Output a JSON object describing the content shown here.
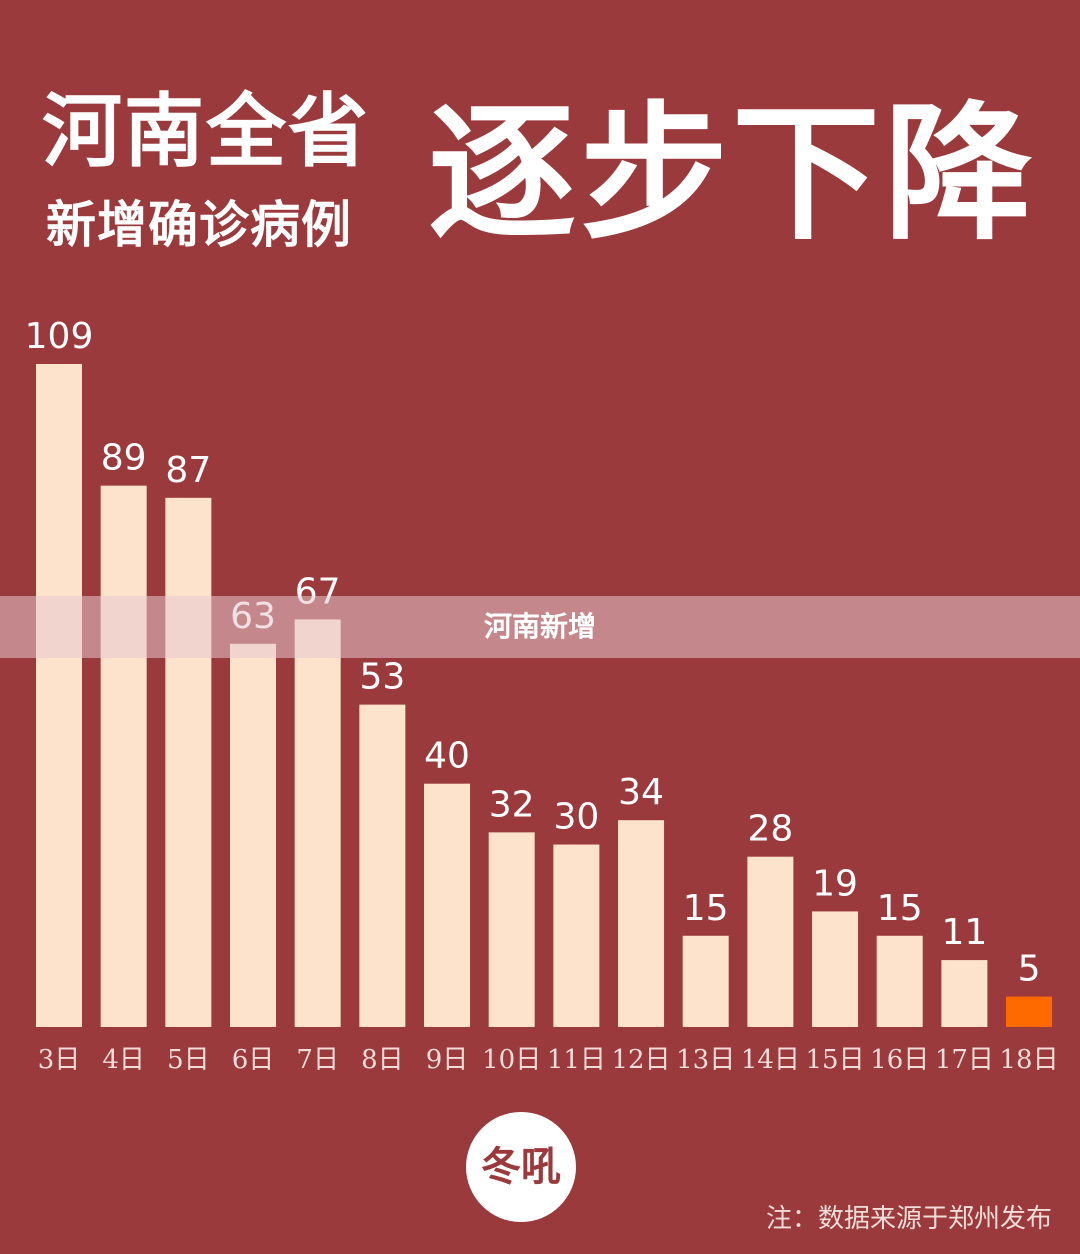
{
  "header": {
    "line1": "河南全省",
    "line2": "新增确诊病例",
    "big": "逐步下降"
  },
  "overlay": {
    "label": "河南新增"
  },
  "logo": {
    "text": "冬吼"
  },
  "footer": {
    "note": "注：数据来源于郑州发布"
  },
  "colors": {
    "background": "#9b3a3c",
    "bar": "#fde3cc",
    "highlight_bar": "#ff6a00",
    "text": "#ffffff"
  },
  "chart_data": {
    "type": "bar",
    "title": "",
    "xlabel": "",
    "ylabel": "",
    "categories": [
      "3日",
      "4日",
      "5日",
      "6日",
      "7日",
      "8日",
      "9日",
      "10日",
      "11日",
      "12日",
      "13日",
      "14日",
      "15日",
      "16日",
      "17日",
      "18日"
    ],
    "values": [
      109,
      89,
      87,
      63,
      67,
      53,
      40,
      32,
      30,
      34,
      15,
      28,
      19,
      15,
      11,
      5
    ],
    "highlight_index": 15,
    "ylim": [
      0,
      109
    ],
    "grid": false,
    "legend": "none"
  }
}
